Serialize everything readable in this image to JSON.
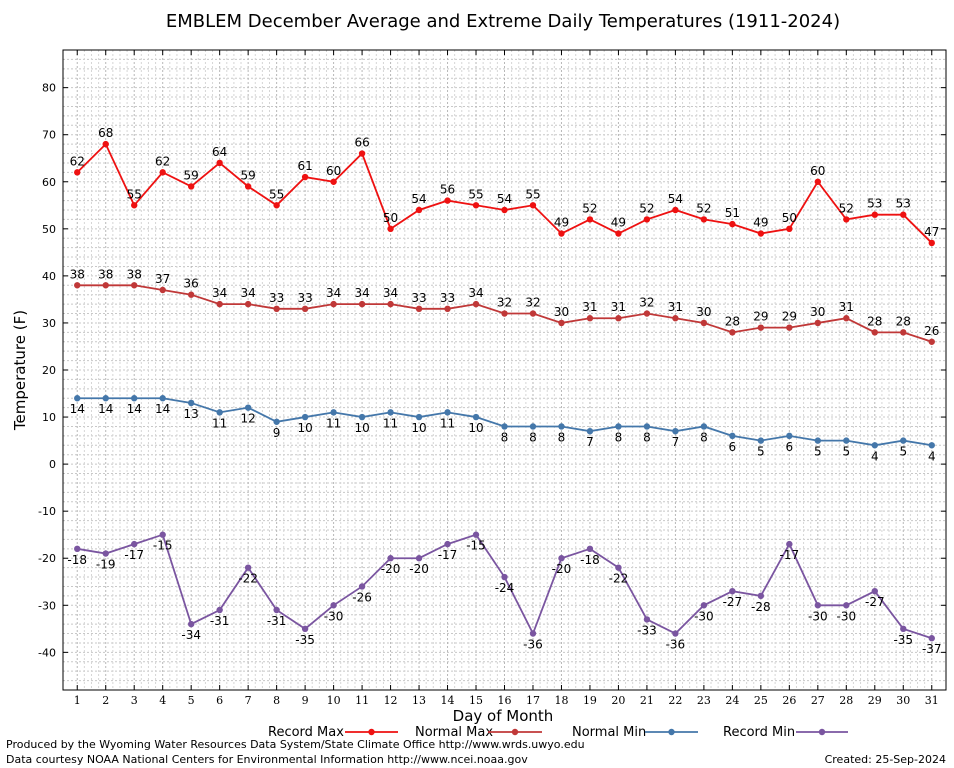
{
  "chart_data": {
    "type": "line",
    "title": "EMBLEM December Average and Extreme Daily Temperatures (1911-2024)",
    "xlabel": "Day of Month",
    "ylabel": "Temperature (F)",
    "x": [
      1,
      2,
      3,
      4,
      5,
      6,
      7,
      8,
      9,
      10,
      11,
      12,
      13,
      14,
      15,
      16,
      17,
      18,
      19,
      20,
      21,
      22,
      23,
      24,
      25,
      26,
      27,
      28,
      29,
      30,
      31
    ],
    "xlim": [
      0.5,
      31.5
    ],
    "ylim": [
      -48,
      88
    ],
    "yticks": [
      -40,
      -30,
      -20,
      -10,
      0,
      10,
      20,
      30,
      40,
      50,
      60,
      70,
      80
    ],
    "grid": true,
    "legend_position": "bottom",
    "series": [
      {
        "name": "Record Max",
        "color": "#ee1111",
        "label_position": "above",
        "values": [
          62,
          68,
          55,
          62,
          59,
          64,
          59,
          55,
          61,
          60,
          66,
          50,
          54,
          56,
          55,
          54,
          55,
          49,
          52,
          49,
          52,
          54,
          52,
          51,
          49,
          50,
          60,
          52,
          53,
          53,
          47
        ]
      },
      {
        "name": "Normal Max",
        "color": "#c03838",
        "label_position": "above",
        "values": [
          38,
          38,
          38,
          37,
          36,
          34,
          34,
          33,
          33,
          34,
          34,
          34,
          33,
          33,
          34,
          32,
          32,
          30,
          31,
          31,
          32,
          31,
          30,
          28,
          29,
          29,
          30,
          31,
          28,
          28,
          26
        ]
      },
      {
        "name": "Normal Min",
        "color": "#4477aa",
        "label_position": "below",
        "values": [
          14,
          14,
          14,
          14,
          13,
          11,
          12,
          9,
          10,
          11,
          10,
          11,
          10,
          11,
          10,
          8,
          8,
          8,
          7,
          8,
          8,
          7,
          8,
          6,
          5,
          6,
          5,
          5,
          4,
          5,
          4
        ]
      },
      {
        "name": "Record Min",
        "color": "#7a55a0",
        "label_position": "below",
        "values": [
          -18,
          -19,
          -17,
          -15,
          -34,
          -31,
          -22,
          -31,
          -35,
          -30,
          -26,
          -20,
          -20,
          -17,
          -15,
          -24,
          -36,
          -20,
          -18,
          -22,
          -33,
          -36,
          -30,
          -27,
          -28,
          -17,
          -30,
          -30,
          -27,
          -35,
          -37
        ]
      }
    ]
  },
  "footer": {
    "produced_by": "Produced by the Wyoming Water Resources Data System/State Climate Office http://www.wrds.uwyo.edu",
    "courtesy": "Data courtesy NOAA National Centers for Environmental Information http://www.ncei.noaa.gov",
    "created": "Created:  25-Sep-2024"
  }
}
